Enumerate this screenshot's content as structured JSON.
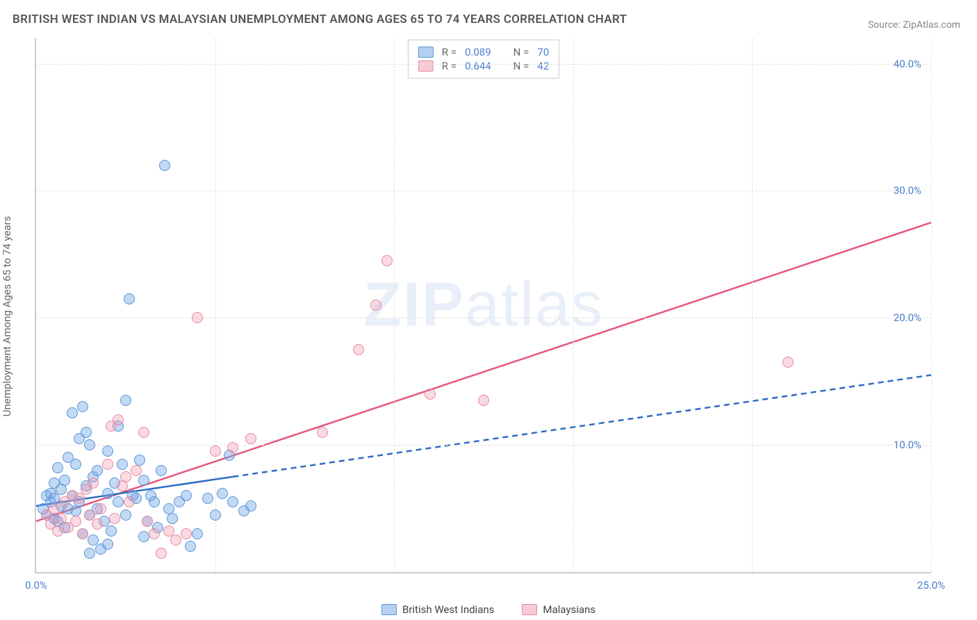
{
  "title": "BRITISH WEST INDIAN VS MALAYSIAN UNEMPLOYMENT AMONG AGES 65 TO 74 YEARS CORRELATION CHART",
  "source": "Source: ZipAtlas.com",
  "watermark_bold": "ZIP",
  "watermark_light": "atlas",
  "y_axis_label": "Unemployment Among Ages 65 to 74 years",
  "chart": {
    "type": "scatter",
    "background_color": "#ffffff",
    "grid_color": "#e2e2e2",
    "axis_color": "#cccccc",
    "tick_color": "#4a7fc9",
    "xlim": [
      0,
      25
    ],
    "ylim": [
      0,
      42
    ],
    "xtick_labels": [
      "0.0%",
      "25.0%"
    ],
    "xtick_positions": [
      0,
      25
    ],
    "ytick_labels": [
      "10.0%",
      "20.0%",
      "30.0%",
      "40.0%"
    ],
    "ytick_positions": [
      10,
      20,
      30,
      40
    ],
    "h_gridlines": [
      10,
      20,
      30,
      40
    ],
    "v_gridlines": [
      5,
      10,
      15,
      20,
      25
    ],
    "marker_size": 16,
    "marker_opacity": 0.45,
    "series": [
      {
        "name": "British West Indians",
        "color_fill": "rgba(120,170,230,0.45)",
        "color_border": "#5a94d8",
        "r_value": "0.089",
        "n_value": "70",
        "trend_line": {
          "type": "solid-then-dashed",
          "color": "#2e6bc4",
          "width": 2.5,
          "solid_start": [
            0,
            5.2
          ],
          "solid_end": [
            5.5,
            7.5
          ],
          "dashed_end": [
            25,
            15.5
          ]
        },
        "points": [
          [
            0.2,
            5.0
          ],
          [
            0.3,
            6.0
          ],
          [
            0.3,
            4.5
          ],
          [
            0.4,
            5.5
          ],
          [
            0.4,
            6.2
          ],
          [
            0.5,
            4.2
          ],
          [
            0.5,
            7.0
          ],
          [
            0.5,
            5.8
          ],
          [
            0.6,
            8.2
          ],
          [
            0.6,
            4.0
          ],
          [
            0.7,
            6.5
          ],
          [
            0.7,
            5.2
          ],
          [
            0.8,
            7.2
          ],
          [
            0.8,
            3.5
          ],
          [
            0.9,
            9.0
          ],
          [
            0.9,
            5.0
          ],
          [
            1.0,
            12.5
          ],
          [
            1.0,
            6.0
          ],
          [
            1.1,
            8.5
          ],
          [
            1.1,
            4.8
          ],
          [
            1.2,
            10.5
          ],
          [
            1.2,
            5.5
          ],
          [
            1.3,
            13.0
          ],
          [
            1.3,
            3.0
          ],
          [
            1.4,
            11.0
          ],
          [
            1.4,
            6.8
          ],
          [
            1.5,
            10.0
          ],
          [
            1.5,
            4.5
          ],
          [
            1.6,
            7.5
          ],
          [
            1.6,
            2.5
          ],
          [
            1.7,
            8.0
          ],
          [
            1.7,
            5.0
          ],
          [
            1.8,
            1.8
          ],
          [
            1.9,
            4.0
          ],
          [
            2.0,
            9.5
          ],
          [
            2.0,
            6.2
          ],
          [
            2.1,
            3.2
          ],
          [
            2.2,
            7.0
          ],
          [
            2.3,
            11.5
          ],
          [
            2.3,
            5.5
          ],
          [
            2.4,
            8.5
          ],
          [
            2.5,
            13.5
          ],
          [
            2.5,
            4.5
          ],
          [
            2.6,
            21.5
          ],
          [
            2.7,
            6.0
          ],
          [
            2.8,
            5.8
          ],
          [
            2.9,
            8.8
          ],
          [
            3.0,
            7.2
          ],
          [
            3.1,
            4.0
          ],
          [
            3.2,
            6.0
          ],
          [
            3.3,
            5.5
          ],
          [
            3.4,
            3.5
          ],
          [
            3.5,
            8.0
          ],
          [
            3.6,
            32.0
          ],
          [
            3.7,
            5.0
          ],
          [
            3.8,
            4.2
          ],
          [
            4.0,
            5.5
          ],
          [
            4.2,
            6.0
          ],
          [
            4.5,
            3.0
          ],
          [
            4.8,
            5.8
          ],
          [
            5.0,
            4.5
          ],
          [
            5.2,
            6.2
          ],
          [
            5.4,
            9.2
          ],
          [
            5.5,
            5.5
          ],
          [
            5.8,
            4.8
          ],
          [
            6.0,
            5.2
          ],
          [
            4.3,
            2.0
          ],
          [
            2.0,
            2.2
          ],
          [
            1.5,
            1.5
          ],
          [
            3.0,
            2.8
          ]
        ]
      },
      {
        "name": "Malaysians",
        "color_fill": "rgba(240,150,170,0.35)",
        "color_border": "#e48aa2",
        "r_value": "0.644",
        "n_value": "42",
        "trend_line": {
          "type": "solid",
          "color": "#e4567a",
          "width": 2.5,
          "solid_start": [
            0,
            4.0
          ],
          "solid_end": [
            25,
            27.5
          ]
        },
        "points": [
          [
            0.3,
            4.5
          ],
          [
            0.4,
            3.8
          ],
          [
            0.5,
            5.0
          ],
          [
            0.6,
            3.2
          ],
          [
            0.7,
            4.2
          ],
          [
            0.8,
            5.5
          ],
          [
            0.9,
            3.5
          ],
          [
            1.0,
            6.0
          ],
          [
            1.1,
            4.0
          ],
          [
            1.2,
            5.8
          ],
          [
            1.3,
            3.0
          ],
          [
            1.4,
            6.5
          ],
          [
            1.5,
            4.5
          ],
          [
            1.6,
            7.0
          ],
          [
            1.7,
            3.8
          ],
          [
            1.8,
            5.0
          ],
          [
            2.0,
            8.5
          ],
          [
            2.1,
            11.5
          ],
          [
            2.2,
            4.2
          ],
          [
            2.3,
            12.0
          ],
          [
            2.5,
            7.5
          ],
          [
            2.6,
            5.5
          ],
          [
            2.8,
            8.0
          ],
          [
            3.0,
            11.0
          ],
          [
            3.1,
            4.0
          ],
          [
            3.3,
            3.0
          ],
          [
            3.5,
            1.5
          ],
          [
            3.7,
            3.2
          ],
          [
            3.9,
            2.5
          ],
          [
            4.2,
            3.0
          ],
          [
            4.5,
            20.0
          ],
          [
            5.0,
            9.5
          ],
          [
            5.5,
            9.8
          ],
          [
            6.0,
            10.5
          ],
          [
            8.0,
            11.0
          ],
          [
            9.0,
            17.5
          ],
          [
            9.5,
            21.0
          ],
          [
            9.8,
            24.5
          ],
          [
            11.0,
            14.0
          ],
          [
            12.5,
            13.5
          ],
          [
            21.0,
            16.5
          ],
          [
            2.4,
            6.8
          ]
        ]
      }
    ]
  },
  "stat_legend": {
    "r_label": "R =",
    "n_label": "N ="
  },
  "series_legend": {
    "blue_label": "British West Indians",
    "pink_label": "Malaysians"
  }
}
